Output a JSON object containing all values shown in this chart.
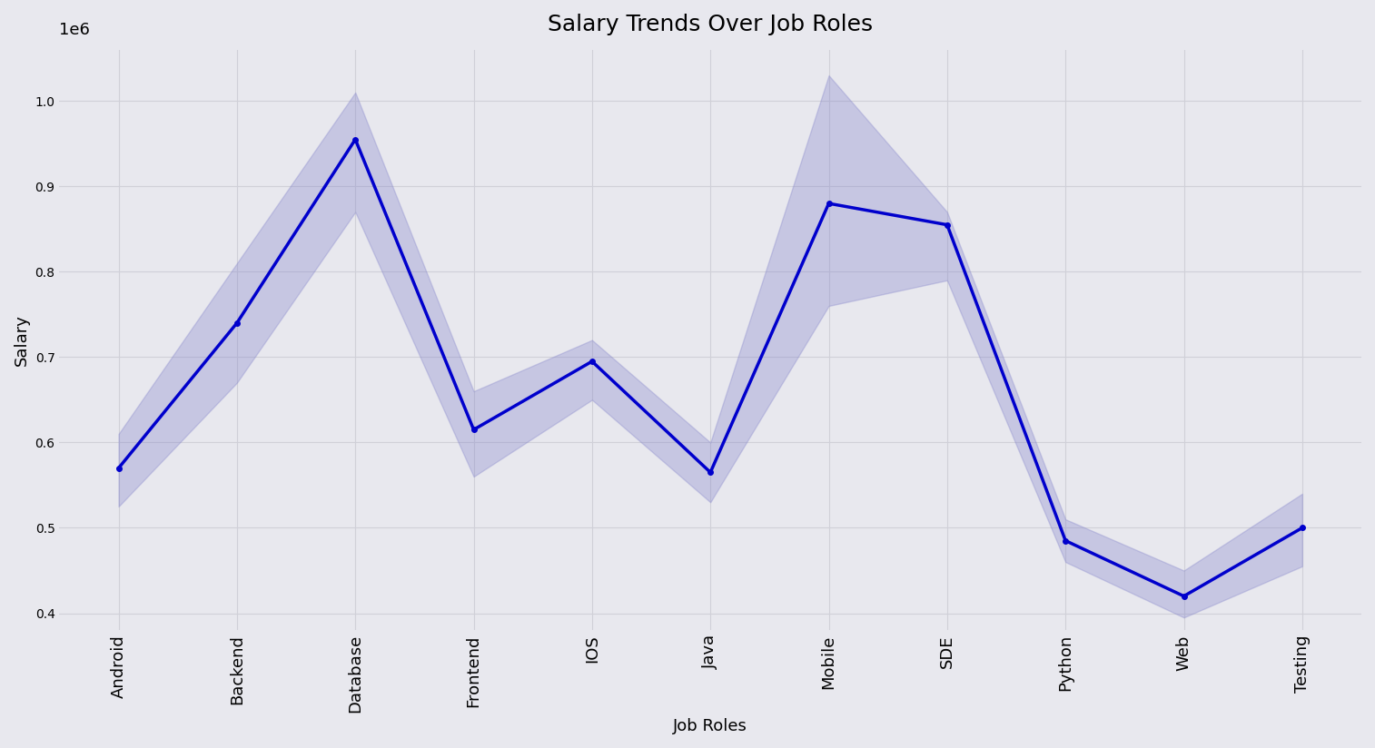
{
  "categories": [
    "Android",
    "Backend",
    "Database",
    "Frontend",
    "IOS",
    "Java",
    "Mobile",
    "SDE",
    "Python",
    "Web",
    "Testing"
  ],
  "mean_values": [
    570000,
    740000,
    955000,
    615000,
    695000,
    565000,
    880000,
    855000,
    485000,
    420000,
    500000
  ],
  "upper_values": [
    610000,
    810000,
    1010000,
    660000,
    720000,
    600000,
    1030000,
    870000,
    510000,
    450000,
    540000
  ],
  "lower_values": [
    525000,
    670000,
    870000,
    560000,
    650000,
    530000,
    760000,
    790000,
    460000,
    395000,
    455000
  ],
  "line_color": "#0000cc",
  "fill_color": "#8888cc",
  "fill_alpha": 0.35,
  "marker": "o",
  "marker_size": 4,
  "line_width": 2.5,
  "title": "Salary Trends Over Job Roles",
  "xlabel": "Job Roles",
  "ylabel": "Salary",
  "background_color": "#e8e8ee",
  "grid_color": "#d0d0d8",
  "title_fontsize": 18,
  "label_fontsize": 13,
  "tick_fontsize": 13,
  "ylim": [
    380000,
    1060000
  ]
}
